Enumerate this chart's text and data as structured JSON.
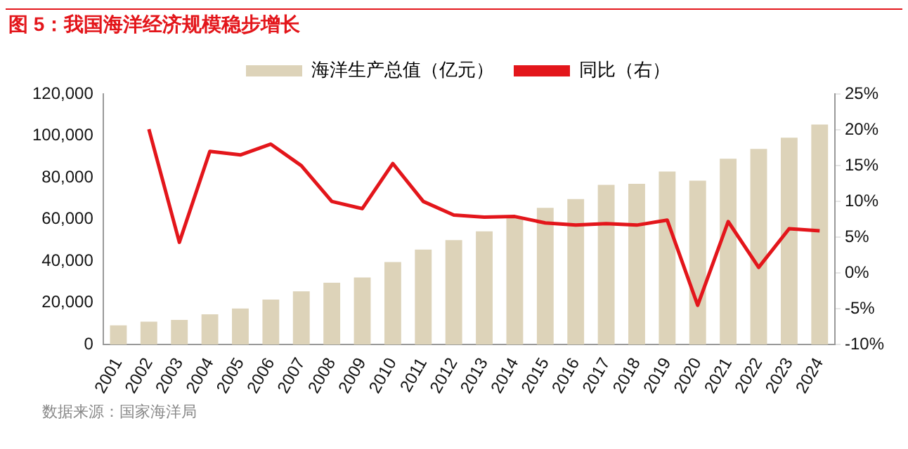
{
  "chart_data": {
    "type": "bar",
    "title": "图 5：我国海洋经济规模稳步增长",
    "categories": [
      "2001",
      "2002",
      "2003",
      "2004",
      "2005",
      "2006",
      "2007",
      "2008",
      "2009",
      "2010",
      "2011",
      "2012",
      "2013",
      "2014",
      "2015",
      "2016",
      "2017",
      "2018",
      "2019",
      "2020",
      "2021",
      "2022",
      "2023",
      "2024"
    ],
    "series": [
      {
        "name": "海洋生产总值（亿元）",
        "color": "#ddd3b9",
        "values": [
          9300,
          11000,
          11900,
          14600,
          17300,
          21600,
          25600,
          29700,
          32200,
          39600,
          45500,
          50100,
          54300,
          60700,
          65500,
          69700,
          76500,
          77000,
          82900,
          78500,
          89000,
          93700,
          99100,
          105400
        ]
      },
      {
        "name": "同比（右）",
        "type": "line",
        "axis": "y2",
        "color": "#e3161b",
        "values": [
          null,
          20.1,
          4.3,
          17.0,
          16.5,
          18.0,
          15.0,
          10.0,
          9.0,
          15.3,
          10.0,
          8.1,
          7.8,
          7.9,
          7.0,
          6.7,
          6.9,
          6.7,
          7.4,
          -4.5,
          7.2,
          0.8,
          6.2,
          5.9
        ]
      }
    ],
    "ylim": [
      0,
      120000
    ],
    "yticks": [
      0,
      {
        "value": 20000,
        "label": "20,000"
      },
      {
        "value": 40000,
        "label": "40,000"
      },
      {
        "value": 60000,
        "label": "60,000"
      },
      {
        "value": 80000,
        "label": "80,000"
      },
      {
        "value": 100000,
        "label": "100,000"
      },
      {
        "value": 120000,
        "label": "120,000"
      }
    ],
    "y2lim": [
      -10,
      25
    ],
    "y2ticks": [
      {
        "value": -10,
        "label": "-10%"
      },
      {
        "value": -5,
        "label": "-5%"
      },
      {
        "value": 0,
        "label": "0%"
      },
      {
        "value": 5,
        "label": "5%"
      },
      {
        "value": 10,
        "label": "10%"
      },
      {
        "value": 15,
        "label": "15%"
      },
      {
        "value": 20,
        "label": "20%"
      },
      {
        "value": 25,
        "label": "25%"
      }
    ],
    "legend": "top",
    "grid": false,
    "marker": "none",
    "annotations": [
      "数据来源：国家海洋局"
    ]
  }
}
